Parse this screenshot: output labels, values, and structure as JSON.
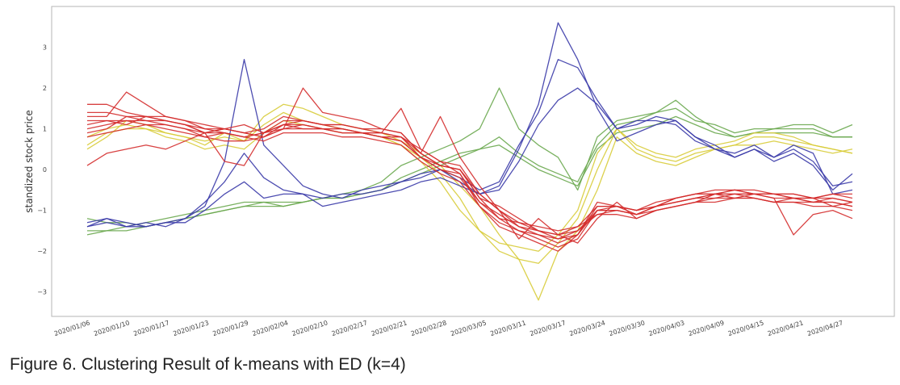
{
  "caption": "Figure 6. Clustering Result of k-means with ED (k=4)",
  "chart_data": {
    "type": "line",
    "title": "",
    "xlabel": "",
    "ylabel": "standized stock price",
    "ylim": [
      -3.6,
      4.0
    ],
    "yticks": [
      3,
      2,
      1,
      0,
      -1,
      -2,
      -3
    ],
    "ytick_labels": [
      "3",
      "2",
      "1",
      "0",
      "−1",
      "−2",
      "−3"
    ],
    "x_tick_labels": [
      "2020/01/06",
      "2020/01/10",
      "2020/01/17",
      "2020/01/23",
      "2020/01/29",
      "2020/02/04",
      "2020/02/10",
      "2020/02/17",
      "2020/02/21",
      "2020/02/28",
      "2020/03/05",
      "2020/03/11",
      "2020/03/17",
      "2020/03/24",
      "2020/03/30",
      "2020/04/03",
      "2020/04/09",
      "2020/04/15",
      "2020/04/21",
      "2020/04/27"
    ],
    "grid": false,
    "legend": "none",
    "cluster_colors": {
      "red": "#d42c2c",
      "blue": "#3a3aa8",
      "green": "#6aa84f",
      "yellow": "#d8cc3a"
    },
    "x": [
      "2020/01/06",
      "2020/01/08",
      "2020/01/10",
      "2020/01/14",
      "2020/01/17",
      "2020/01/21",
      "2020/01/23",
      "2020/01/27",
      "2020/01/29",
      "2020/01/31",
      "2020/02/04",
      "2020/02/06",
      "2020/02/10",
      "2020/02/12",
      "2020/02/17",
      "2020/02/19",
      "2020/02/21",
      "2020/02/25",
      "2020/02/28",
      "2020/03/03",
      "2020/03/05",
      "2020/03/09",
      "2020/03/11",
      "2020/03/13",
      "2020/03/17",
      "2020/03/19",
      "2020/03/24",
      "2020/03/26",
      "2020/03/30",
      "2020/04/01",
      "2020/04/03",
      "2020/04/07",
      "2020/04/09",
      "2020/04/13",
      "2020/04/15",
      "2020/04/17",
      "2020/04/21",
      "2020/04/23",
      "2020/04/27",
      "2020/04/29"
    ],
    "series": [
      {
        "cluster": "blue",
        "values": [
          -1.4,
          -1.3,
          -1.4,
          -1.3,
          -1.4,
          -1.2,
          -0.9,
          0.2,
          2.7,
          0.6,
          0.1,
          -0.4,
          -0.6,
          -0.7,
          -0.5,
          -0.4,
          -0.3,
          -0.2,
          0.0,
          -0.3,
          -0.6,
          -0.4,
          0.5,
          1.6,
          3.6,
          2.7,
          1.5,
          0.7,
          0.9,
          1.1,
          1.2,
          0.8,
          0.6,
          0.3,
          0.5,
          0.2,
          0.4,
          0.1,
          -0.5,
          -0.1
        ]
      },
      {
        "cluster": "blue",
        "values": [
          -1.3,
          -1.2,
          -1.4,
          -1.4,
          -1.3,
          -1.3,
          -1.0,
          -0.6,
          -0.3,
          -0.7,
          -0.6,
          -0.6,
          -0.7,
          -0.6,
          -0.6,
          -0.5,
          -0.3,
          -0.1,
          0.0,
          -0.2,
          -0.5,
          -0.3,
          0.6,
          1.4,
          2.7,
          2.5,
          1.7,
          1.0,
          1.1,
          1.3,
          1.2,
          0.8,
          0.5,
          0.4,
          0.6,
          0.3,
          0.5,
          0.2,
          -0.4,
          -0.3
        ]
      },
      {
        "cluster": "blue",
        "values": [
          -1.4,
          -1.2,
          -1.3,
          -1.4,
          -1.3,
          -1.2,
          -0.8,
          -0.3,
          0.4,
          -0.2,
          -0.5,
          -0.6,
          -0.9,
          -0.8,
          -0.7,
          -0.6,
          -0.5,
          -0.3,
          -0.2,
          -0.4,
          -0.6,
          -0.5,
          0.2,
          1.1,
          1.7,
          2.0,
          1.6,
          1.0,
          1.2,
          1.2,
          1.1,
          0.7,
          0.5,
          0.3,
          0.5,
          0.3,
          0.6,
          0.4,
          -0.6,
          -0.5
        ]
      },
      {
        "cluster": "green",
        "values": [
          -1.5,
          -1.5,
          -1.4,
          -1.3,
          -1.2,
          -1.1,
          -1.0,
          -0.9,
          -0.8,
          -0.8,
          -0.9,
          -0.8,
          -0.7,
          -0.6,
          -0.5,
          -0.3,
          0.1,
          0.3,
          0.5,
          0.7,
          1.0,
          2.0,
          1.0,
          0.6,
          0.3,
          -0.5,
          0.8,
          1.2,
          1.3,
          1.4,
          1.5,
          1.2,
          1.1,
          0.9,
          1.0,
          1.0,
          1.1,
          1.1,
          0.9,
          1.1
        ]
      },
      {
        "cluster": "green",
        "values": [
          -1.2,
          -1.3,
          -1.3,
          -1.4,
          -1.3,
          -1.2,
          -1.1,
          -1.0,
          -0.9,
          -0.9,
          -0.9,
          -0.8,
          -0.7,
          -0.7,
          -0.6,
          -0.5,
          -0.2,
          0.0,
          0.2,
          0.4,
          0.5,
          0.8,
          0.4,
          0.1,
          -0.1,
          -0.3,
          0.6,
          1.1,
          1.2,
          1.4,
          1.7,
          1.3,
          1.0,
          0.8,
          0.9,
          1.0,
          1.0,
          1.0,
          0.8,
          0.8
        ]
      },
      {
        "cluster": "green",
        "values": [
          -1.6,
          -1.5,
          -1.5,
          -1.4,
          -1.3,
          -1.2,
          -1.1,
          -1.0,
          -0.9,
          -0.8,
          -0.8,
          -0.8,
          -0.7,
          -0.7,
          -0.6,
          -0.5,
          -0.3,
          -0.1,
          0.1,
          0.3,
          0.5,
          0.6,
          0.3,
          0.0,
          -0.2,
          -0.4,
          0.5,
          0.9,
          1.0,
          1.1,
          1.3,
          1.1,
          0.9,
          0.8,
          0.9,
          0.9,
          0.9,
          0.9,
          0.8,
          0.8
        ]
      },
      {
        "cluster": "yellow",
        "values": [
          0.5,
          0.8,
          1.2,
          1.1,
          0.9,
          0.8,
          0.6,
          0.9,
          0.7,
          1.3,
          1.6,
          1.5,
          1.3,
          1.1,
          1.0,
          0.9,
          0.7,
          0.4,
          0.1,
          -0.4,
          -0.9,
          -1.6,
          -2.2,
          -3.2,
          -2.0,
          -1.5,
          -0.5,
          0.8,
          0.4,
          0.2,
          0.1,
          0.3,
          0.5,
          0.6,
          0.6,
          0.7,
          0.6,
          0.5,
          0.4,
          0.5
        ]
      },
      {
        "cluster": "yellow",
        "values": [
          0.8,
          1.0,
          1.1,
          1.0,
          0.8,
          0.7,
          0.5,
          0.6,
          0.5,
          0.9,
          1.2,
          1.1,
          1.0,
          0.9,
          0.9,
          0.8,
          0.6,
          0.3,
          -0.1,
          -0.7,
          -1.5,
          -2.0,
          -2.2,
          -2.3,
          -1.8,
          -1.2,
          0.0,
          1.0,
          0.5,
          0.3,
          0.2,
          0.4,
          0.5,
          0.6,
          0.8,
          0.8,
          0.7,
          0.6,
          0.5,
          0.4
        ]
      },
      {
        "cluster": "yellow",
        "values": [
          0.6,
          0.9,
          1.0,
          1.0,
          0.9,
          0.8,
          0.7,
          0.8,
          0.7,
          1.1,
          1.4,
          1.2,
          1.1,
          1.0,
          0.9,
          0.8,
          0.6,
          0.2,
          -0.3,
          -1.0,
          -1.5,
          -1.8,
          -1.9,
          -2.0,
          -1.6,
          -1.0,
          0.4,
          1.0,
          0.6,
          0.4,
          0.3,
          0.5,
          0.6,
          0.7,
          0.9,
          0.9,
          0.8,
          0.6,
          0.5,
          0.4
        ]
      },
      {
        "cluster": "red",
        "values": [
          1.6,
          1.6,
          1.4,
          1.3,
          1.2,
          1.1,
          0.9,
          1.0,
          0.9,
          0.8,
          1.1,
          1.2,
          1.1,
          1.0,
          0.9,
          0.9,
          0.8,
          0.3,
          0.1,
          0.0,
          -0.7,
          -1.2,
          -1.5,
          -1.7,
          -1.9,
          -1.7,
          -1.0,
          -0.9,
          -1.0,
          -0.9,
          -0.8,
          -0.7,
          -0.7,
          -0.6,
          -0.7,
          -0.8,
          -0.7,
          -0.8,
          -0.8,
          -0.9
        ]
      },
      {
        "cluster": "red",
        "values": [
          1.3,
          1.3,
          1.9,
          1.6,
          1.3,
          1.2,
          1.0,
          1.0,
          1.1,
          0.9,
          1.2,
          1.2,
          1.1,
          1.1,
          1.0,
          0.9,
          1.5,
          0.5,
          0.2,
          -0.1,
          -0.9,
          -1.4,
          -1.6,
          -1.8,
          -2.0,
          -1.6,
          -0.8,
          -0.9,
          -1.1,
          -0.9,
          -0.7,
          -0.6,
          -0.6,
          -0.5,
          -0.5,
          -0.6,
          -0.6,
          -0.7,
          -0.9,
          -0.8
        ]
      },
      {
        "cluster": "red",
        "values": [
          0.1,
          0.4,
          0.5,
          0.6,
          0.5,
          0.7,
          0.9,
          0.2,
          0.1,
          0.9,
          1.0,
          2.0,
          1.4,
          1.3,
          1.2,
          1.0,
          0.9,
          0.4,
          1.3,
          0.3,
          -0.4,
          -1.0,
          -1.7,
          -1.2,
          -1.6,
          -1.8,
          -1.2,
          -0.8,
          -1.2,
          -1.0,
          -0.9,
          -0.8,
          -0.6,
          -0.7,
          -0.6,
          -0.7,
          -1.6,
          -1.1,
          -1.0,
          -1.2
        ]
      },
      {
        "cluster": "red",
        "values": [
          1.0,
          1.1,
          1.2,
          1.2,
          1.2,
          1.1,
          1.0,
          0.9,
          0.8,
          0.9,
          1.1,
          1.1,
          1.0,
          1.0,
          0.9,
          0.9,
          0.8,
          0.5,
          0.2,
          0.1,
          -0.6,
          -1.0,
          -1.4,
          -1.6,
          -1.7,
          -1.5,
          -1.0,
          -1.0,
          -1.1,
          -0.9,
          -0.8,
          -0.7,
          -0.6,
          -0.6,
          -0.6,
          -0.7,
          -0.7,
          -0.8,
          -0.8,
          -0.9
        ]
      },
      {
        "cluster": "red",
        "values": [
          0.9,
          1.0,
          1.3,
          1.3,
          1.2,
          1.1,
          0.9,
          1.0,
          0.9,
          0.8,
          1.0,
          1.0,
          1.0,
          0.9,
          0.9,
          0.8,
          0.7,
          0.3,
          0.0,
          -0.1,
          -0.8,
          -1.2,
          -1.3,
          -1.4,
          -1.5,
          -1.4,
          -1.1,
          -1.1,
          -1.2,
          -1.0,
          -0.9,
          -0.8,
          -0.7,
          -0.7,
          -0.7,
          -0.8,
          -0.8,
          -0.8,
          -0.7,
          -0.8
        ]
      },
      {
        "cluster": "red",
        "values": [
          1.2,
          1.2,
          1.1,
          1.3,
          1.3,
          1.2,
          1.1,
          1.0,
          0.9,
          1.0,
          1.3,
          1.2,
          1.1,
          1.1,
          1.0,
          1.0,
          0.9,
          0.4,
          0.1,
          0.0,
          -0.7,
          -0.9,
          -1.2,
          -1.5,
          -1.7,
          -1.6,
          -1.0,
          -1.0,
          -1.1,
          -0.9,
          -0.7,
          -0.6,
          -0.5,
          -0.5,
          -0.6,
          -0.6,
          -0.6,
          -0.7,
          -0.7,
          -0.8
        ]
      },
      {
        "cluster": "red",
        "values": [
          1.4,
          1.4,
          1.3,
          1.2,
          1.1,
          1.0,
          0.8,
          0.9,
          0.8,
          0.7,
          0.9,
          0.9,
          0.9,
          0.8,
          0.8,
          0.7,
          0.6,
          0.2,
          -0.1,
          -0.3,
          -0.9,
          -1.3,
          -1.5,
          -1.6,
          -1.8,
          -1.6,
          -0.9,
          -0.9,
          -1.0,
          -0.8,
          -0.7,
          -0.6,
          -0.6,
          -0.5,
          -0.6,
          -0.6,
          -0.7,
          -0.7,
          -0.6,
          -0.7
        ]
      },
      {
        "cluster": "red",
        "values": [
          0.8,
          0.9,
          1.0,
          1.1,
          1.0,
          0.9,
          0.8,
          0.7,
          0.7,
          0.8,
          1.0,
          1.1,
          1.0,
          1.0,
          0.9,
          0.8,
          0.7,
          0.3,
          0.0,
          -0.2,
          -0.8,
          -1.1,
          -1.4,
          -1.5,
          -1.6,
          -1.5,
          -1.1,
          -1.0,
          -1.1,
          -1.0,
          -0.9,
          -0.8,
          -0.8,
          -0.7,
          -0.7,
          -0.8,
          -0.8,
          -0.9,
          -0.9,
          -1.0
        ]
      },
      {
        "cluster": "red",
        "values": [
          1.1,
          1.2,
          1.2,
          1.1,
          1.1,
          1.0,
          0.9,
          0.9,
          0.8,
          0.9,
          1.1,
          1.0,
          1.0,
          0.9,
          0.9,
          0.8,
          0.8,
          0.4,
          0.1,
          0.0,
          -0.6,
          -1.0,
          -1.3,
          -1.5,
          -1.6,
          -1.4,
          -0.9,
          -0.9,
          -1.0,
          -0.9,
          -0.8,
          -0.7,
          -0.6,
          -0.6,
          -0.6,
          -0.6,
          -0.7,
          -0.7,
          -0.6,
          -0.6
        ]
      }
    ]
  }
}
